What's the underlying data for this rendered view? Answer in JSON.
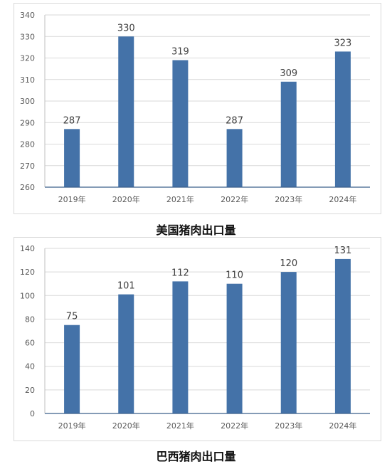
{
  "chart_data": [
    {
      "type": "bar",
      "title": "美国猪肉出口量",
      "categories": [
        "2019年",
        "2020年",
        "2021年",
        "2022年",
        "2023年",
        "2024年"
      ],
      "values": [
        287,
        330,
        319,
        287,
        309,
        323
      ],
      "ylim": [
        260,
        340
      ],
      "yticks": [
        260,
        270,
        280,
        290,
        300,
        310,
        320,
        330,
        340
      ],
      "grid": true,
      "bar_color": "#4472a8"
    },
    {
      "type": "bar",
      "title": "巴西猪肉出口量",
      "categories": [
        "2019年",
        "2020年",
        "2021年",
        "2022年",
        "2023年",
        "2024年"
      ],
      "values": [
        75,
        101,
        112,
        110,
        120,
        131
      ],
      "ylim": [
        0,
        140
      ],
      "yticks": [
        0,
        20,
        40,
        60,
        80,
        100,
        120,
        140
      ],
      "grid": true,
      "bar_color": "#4472a8"
    }
  ]
}
